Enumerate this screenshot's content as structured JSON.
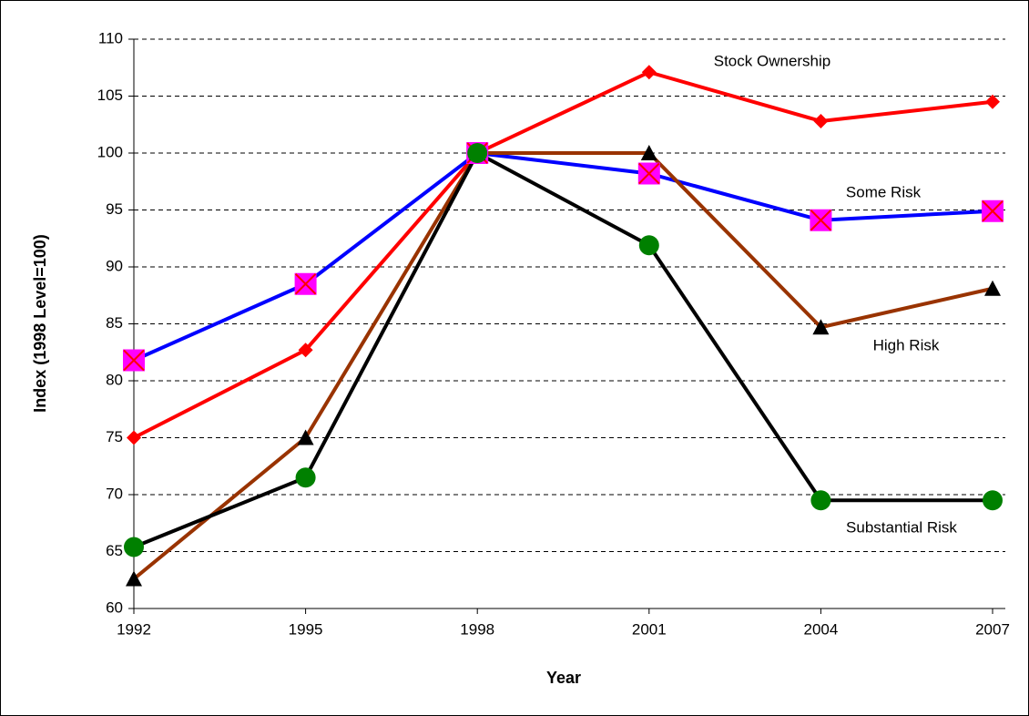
{
  "chart_data": {
    "type": "line",
    "x_label": "Year",
    "y_label": "Index (1998 Level=100)",
    "categories": [
      "1992",
      "1995",
      "1998",
      "2001",
      "2004",
      "2007"
    ],
    "series": [
      {
        "name": "Stock Ownership",
        "color": "#ff0000",
        "marker": "diamond",
        "marker_color": "#ff0000",
        "values": [
          75,
          82.7,
          100,
          107.1,
          102.8,
          104.5
        ]
      },
      {
        "name": "Some Risk",
        "color": "#0000ff",
        "marker": "square-x",
        "marker_color": "#ff00ff",
        "values": [
          81.8,
          88.5,
          100,
          98.2,
          94.1,
          94.9
        ]
      },
      {
        "name": "High Risk",
        "color": "#993300",
        "marker": "triangle",
        "marker_color": "#000000",
        "values": [
          62.6,
          75,
          100,
          100,
          84.7,
          88.1
        ]
      },
      {
        "name": "Substantial Risk",
        "color": "#000000",
        "marker": "circle",
        "marker_color": "#008000",
        "values": [
          65.4,
          71.5,
          100,
          91.9,
          69.5,
          69.5
        ]
      }
    ],
    "ylim": [
      60,
      110
    ],
    "yticks": [
      60,
      65,
      70,
      75,
      80,
      85,
      90,
      95,
      100,
      105,
      110
    ],
    "grid": true
  }
}
